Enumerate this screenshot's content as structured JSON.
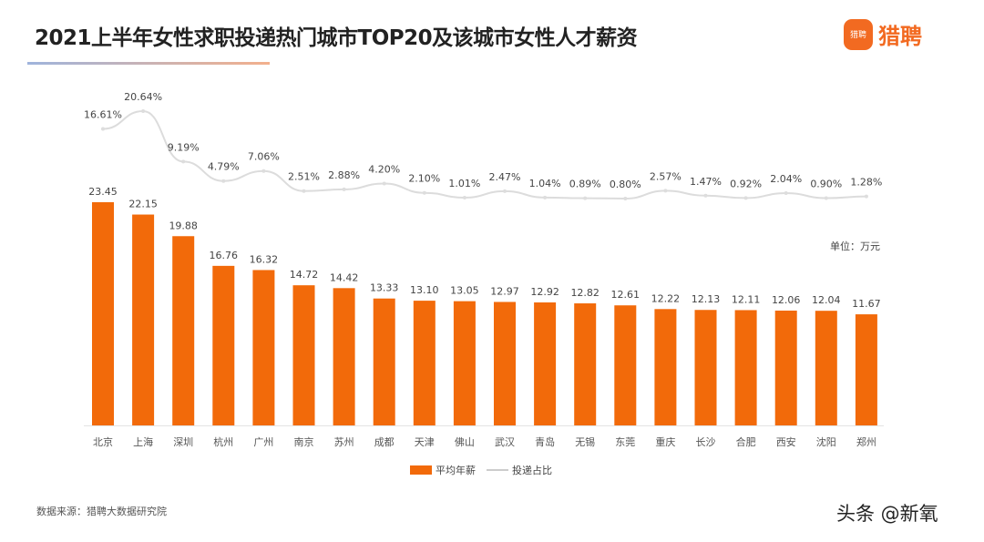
{
  "title": "2021上半年女性求职投递热门城市TOP20及该城市女性人才薪资",
  "brand": {
    "name": "猎聘",
    "icon_text": "猎聘",
    "color": "#f26a21"
  },
  "source": "数据来源：猎聘大数据研究院",
  "watermark": "头条 @新氧",
  "chart_data": {
    "type": "bar+line",
    "title": "2021上半年女性求职投递热门城市TOP20及该城市女性人才薪资",
    "unit_label": "单位：万元",
    "categories": [
      "北京",
      "上海",
      "深圳",
      "杭州",
      "广州",
      "南京",
      "苏州",
      "成都",
      "天津",
      "佛山",
      "武汉",
      "青岛",
      "无锡",
      "东莞",
      "重庆",
      "长沙",
      "合肥",
      "西安",
      "沈阳",
      "郑州"
    ],
    "series": [
      {
        "name": "平均年薪",
        "type": "bar",
        "color": "#f26a0a",
        "values": [
          23.45,
          22.15,
          19.88,
          16.76,
          16.32,
          14.72,
          14.42,
          13.33,
          13.1,
          13.05,
          12.97,
          12.92,
          12.82,
          12.61,
          12.22,
          12.13,
          12.11,
          12.06,
          12.04,
          11.67
        ]
      },
      {
        "name": "投递占比",
        "type": "line",
        "color": "#dcdcdc",
        "values": [
          16.61,
          20.64,
          9.19,
          4.79,
          7.06,
          2.51,
          2.88,
          4.2,
          2.1,
          1.01,
          2.47,
          1.04,
          0.89,
          0.8,
          2.57,
          1.47,
          0.92,
          2.04,
          0.9,
          1.28
        ]
      }
    ],
    "legend": "bottom-center",
    "grid": false
  }
}
